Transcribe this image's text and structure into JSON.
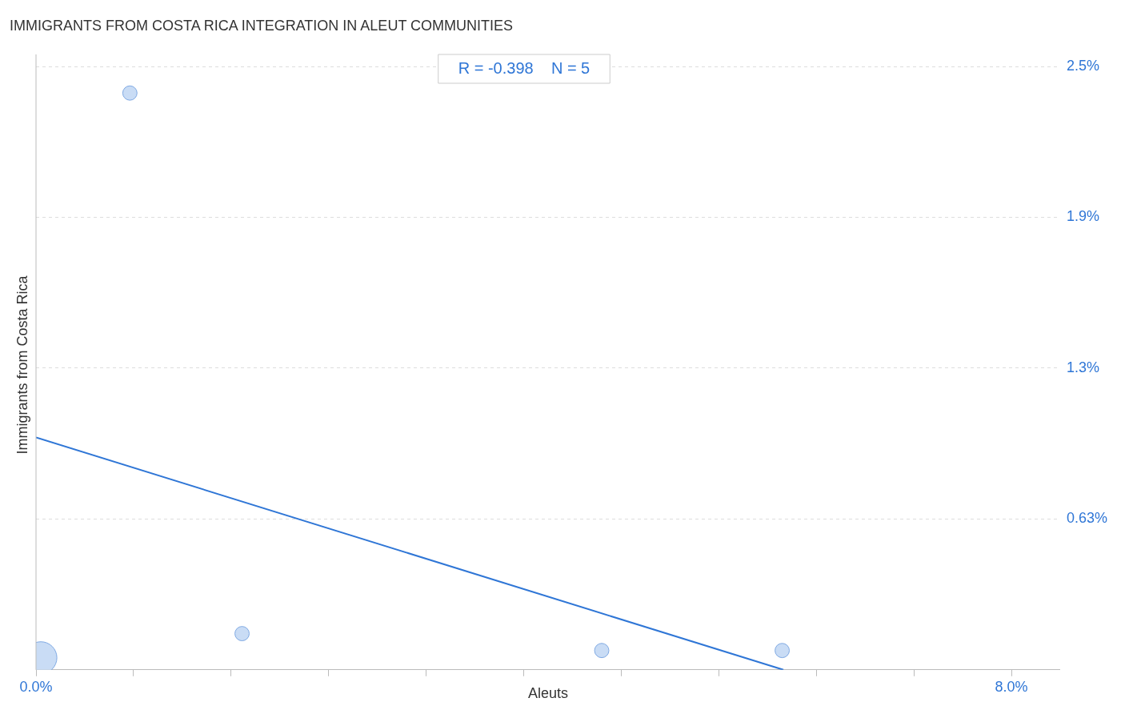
{
  "chart_data": {
    "type": "bubble",
    "title": "IMMIGRANTS FROM COSTA RICA INTEGRATION IN ALEUT COMMUNITIES",
    "xlabel": "Aleuts",
    "ylabel": "Immigrants from Costa Rica",
    "annotations": [
      "R = -0.398    N = 5"
    ],
    "xlim": [
      0,
      8.4
    ],
    "ylim": [
      0,
      2.55
    ],
    "xticks": [
      {
        "value": 0,
        "label": "0.0%"
      },
      {
        "value": 0.8,
        "label": null
      },
      {
        "value": 1.6,
        "label": null
      },
      {
        "value": 2.4,
        "label": null
      },
      {
        "value": 3.2,
        "label": null
      },
      {
        "value": 4,
        "label": null
      },
      {
        "value": 4.8,
        "label": null
      },
      {
        "value": 5.6,
        "label": null
      },
      {
        "value": 6.4,
        "label": null
      },
      {
        "value": 7.2,
        "label": null
      },
      {
        "value": 8,
        "label": "8.0%"
      }
    ],
    "yticks": [
      {
        "value": 0.625,
        "label": "0.63%"
      },
      {
        "value": 1.25,
        "label": "1.3%"
      },
      {
        "value": 1.875,
        "label": "1.9%"
      },
      {
        "value": 2.5,
        "label": "2.5%"
      }
    ],
    "grid": "y",
    "legend": false,
    "marker": "circle",
    "series": [
      {
        "color": "#c9dcf5",
        "x": [
          0.04,
          0.77,
          1.69,
          4.64,
          6.12
        ],
        "values": [
          0.05,
          2.39,
          0.15,
          0.08,
          0.08
        ],
        "sizes": [
          1,
          0.2,
          0.2,
          0.2,
          0.2
        ]
      },
      {
        "type": "line",
        "color": "#2f76d6",
        "x": [
          0,
          6.13
        ],
        "values": [
          0.963,
          0
        ],
        "line_style": "solid",
        "marker": "none"
      }
    ]
  }
}
